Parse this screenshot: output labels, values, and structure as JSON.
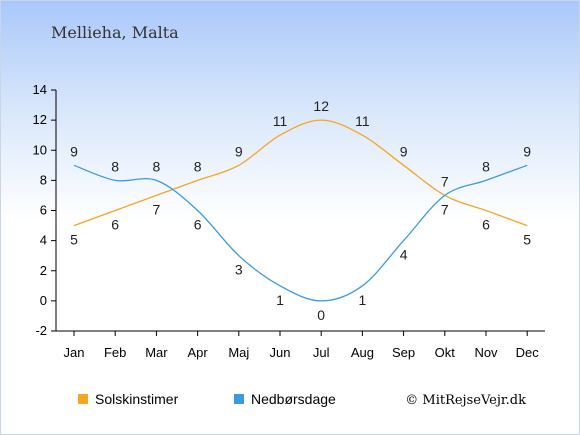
{
  "chart_data": {
    "type": "line",
    "title": "Mellieha, Malta",
    "categories": [
      "Jan",
      "Feb",
      "Mar",
      "Apr",
      "Maj",
      "Jun",
      "Jul",
      "Aug",
      "Sep",
      "Okt",
      "Nov",
      "Dec"
    ],
    "ylim": [
      -2,
      14
    ],
    "yticks": [
      -2,
      0,
      2,
      4,
      6,
      8,
      10,
      12,
      14
    ],
    "grid": false,
    "legend_position": "bottom-left",
    "series": [
      {
        "name": "Solskinstimer",
        "color": "#f5a623",
        "values": [
          5,
          6,
          7,
          8,
          9,
          11,
          12,
          11,
          9,
          7,
          6,
          5
        ]
      },
      {
        "name": "Nedbørsdage",
        "color": "#3b9be0",
        "values": [
          9,
          8,
          8,
          6,
          3,
          1,
          0,
          1,
          4,
          7,
          8,
          9
        ]
      }
    ]
  },
  "credit": "© MitRejseVejr.dk"
}
